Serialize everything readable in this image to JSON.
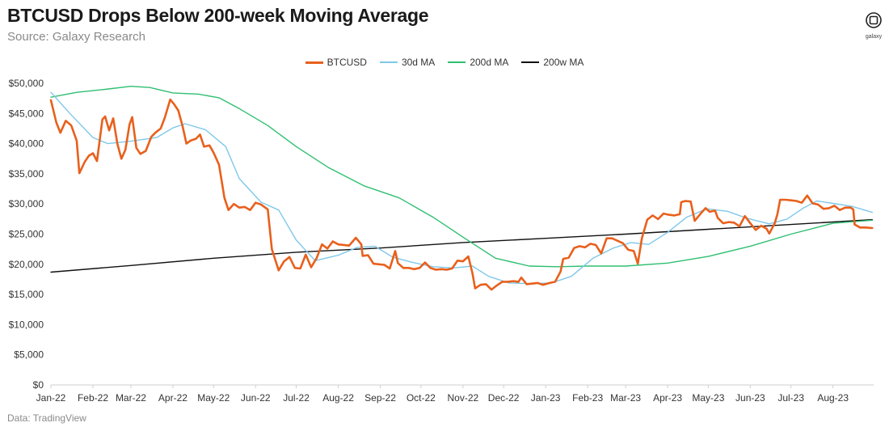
{
  "header": {
    "title": "BTCUSD Drops Below 200-week Moving Average",
    "subtitle": "Source: Galaxy Research"
  },
  "logo": {
    "text": "galaxy",
    "icon": "galaxy-logo-icon"
  },
  "footer": {
    "text": "Data: TradingView"
  },
  "colors": {
    "btc": "#e8601c",
    "ma30": "#7ec8ea",
    "ma200": "#2fbf71",
    "ma200w": "#111111",
    "axis": "#cfcfcf"
  },
  "chart_data": {
    "type": "line",
    "title": "BTCUSD Drops Below 200-week Moving Average",
    "subtitle": "Source: Galaxy Research",
    "xlabel": "",
    "ylabel": "",
    "ylim": [
      0,
      50000
    ],
    "y_ticks": [
      "$0",
      "$5,000",
      "$10,000",
      "$15,000",
      "$20,000",
      "$25,000",
      "$30,000",
      "$35,000",
      "$40,000",
      "$45,000",
      "$50,000"
    ],
    "x_ticks": [
      "Jan-22",
      "Feb-22",
      "Mar-22",
      "Apr-22",
      "May-22",
      "Jun-22",
      "Jul-22",
      "Aug-22",
      "Sep-22",
      "Oct-22",
      "Nov-22",
      "Dec-22",
      "Jan-23",
      "Feb-23",
      "Mar-23",
      "Apr-23",
      "May-23",
      "Jun-23",
      "Jul-23",
      "Aug-23"
    ],
    "x_range": [
      "2022-01-01",
      "2023-08-31"
    ],
    "grid": false,
    "legend_position": "top-center",
    "series": [
      {
        "name": "BTCUSD",
        "key": "btc",
        "points": [
          [
            "2022-01-01",
            47200
          ],
          [
            "2022-01-05",
            43500
          ],
          [
            "2022-01-08",
            41800
          ],
          [
            "2022-01-12",
            43800
          ],
          [
            "2022-01-16",
            43000
          ],
          [
            "2022-01-20",
            40500
          ],
          [
            "2022-01-22",
            35100
          ],
          [
            "2022-01-26",
            37000
          ],
          [
            "2022-01-29",
            38000
          ],
          [
            "2022-02-01",
            38400
          ],
          [
            "2022-02-04",
            37100
          ],
          [
            "2022-02-08",
            44000
          ],
          [
            "2022-02-10",
            44500
          ],
          [
            "2022-02-13",
            42200
          ],
          [
            "2022-02-16",
            44200
          ],
          [
            "2022-02-19",
            40000
          ],
          [
            "2022-02-22",
            37500
          ],
          [
            "2022-02-25",
            39000
          ],
          [
            "2022-02-28",
            43200
          ],
          [
            "2022-03-02",
            44400
          ],
          [
            "2022-03-05",
            39300
          ],
          [
            "2022-03-08",
            38300
          ],
          [
            "2022-03-12",
            38800
          ],
          [
            "2022-03-16",
            41100
          ],
          [
            "2022-03-19",
            41800
          ],
          [
            "2022-03-23",
            42500
          ],
          [
            "2022-03-26",
            44300
          ],
          [
            "2022-03-30",
            47300
          ],
          [
            "2022-04-02",
            46500
          ],
          [
            "2022-04-05",
            45500
          ],
          [
            "2022-04-08",
            43000
          ],
          [
            "2022-04-11",
            40000
          ],
          [
            "2022-04-14",
            40500
          ],
          [
            "2022-04-18",
            40800
          ],
          [
            "2022-04-21",
            41500
          ],
          [
            "2022-04-24",
            39500
          ],
          [
            "2022-04-28",
            39700
          ],
          [
            "2022-05-01",
            38500
          ],
          [
            "2022-05-05",
            36500
          ],
          [
            "2022-05-09",
            31000
          ],
          [
            "2022-05-12",
            29000
          ],
          [
            "2022-05-16",
            30000
          ],
          [
            "2022-05-20",
            29400
          ],
          [
            "2022-05-24",
            29500
          ],
          [
            "2022-05-28",
            29000
          ],
          [
            "2022-06-01",
            30200
          ],
          [
            "2022-06-05",
            29900
          ],
          [
            "2022-06-10",
            29100
          ],
          [
            "2022-06-13",
            22500
          ],
          [
            "2022-06-18",
            19000
          ],
          [
            "2022-06-22",
            20500
          ],
          [
            "2022-06-26",
            21200
          ],
          [
            "2022-06-30",
            19400
          ],
          [
            "2022-07-04",
            19300
          ],
          [
            "2022-07-08",
            21600
          ],
          [
            "2022-07-12",
            19500
          ],
          [
            "2022-07-16",
            21000
          ],
          [
            "2022-07-20",
            23300
          ],
          [
            "2022-07-24",
            22600
          ],
          [
            "2022-07-28",
            23800
          ],
          [
            "2022-08-01",
            23300
          ],
          [
            "2022-08-05",
            23200
          ],
          [
            "2022-08-09",
            23100
          ],
          [
            "2022-08-14",
            24400
          ],
          [
            "2022-08-18",
            23300
          ],
          [
            "2022-08-19",
            21400
          ],
          [
            "2022-08-23",
            21500
          ],
          [
            "2022-08-27",
            20100
          ],
          [
            "2022-08-31",
            20000
          ],
          [
            "2022-09-04",
            19900
          ],
          [
            "2022-09-08",
            19300
          ],
          [
            "2022-09-12",
            22200
          ],
          [
            "2022-09-14",
            20200
          ],
          [
            "2022-09-18",
            19400
          ],
          [
            "2022-09-22",
            19400
          ],
          [
            "2022-09-26",
            19200
          ],
          [
            "2022-09-30",
            19400
          ],
          [
            "2022-10-04",
            20300
          ],
          [
            "2022-10-08",
            19400
          ],
          [
            "2022-10-12",
            19100
          ],
          [
            "2022-10-16",
            19200
          ],
          [
            "2022-10-20",
            19100
          ],
          [
            "2022-10-24",
            19300
          ],
          [
            "2022-10-28",
            20600
          ],
          [
            "2022-11-01",
            20500
          ],
          [
            "2022-11-05",
            21300
          ],
          [
            "2022-11-08",
            18500
          ],
          [
            "2022-11-10",
            16000
          ],
          [
            "2022-11-14",
            16600
          ],
          [
            "2022-11-18",
            16700
          ],
          [
            "2022-11-22",
            15800
          ],
          [
            "2022-11-26",
            16500
          ],
          [
            "2022-11-30",
            17100
          ],
          [
            "2022-12-04",
            17100
          ],
          [
            "2022-12-08",
            17200
          ],
          [
            "2022-12-12",
            17100
          ],
          [
            "2022-12-14",
            17800
          ],
          [
            "2022-12-18",
            16700
          ],
          [
            "2022-12-22",
            16800
          ],
          [
            "2022-12-26",
            16900
          ],
          [
            "2022-12-30",
            16600
          ],
          [
            "2023-01-04",
            16900
          ],
          [
            "2023-01-08",
            17100
          ],
          [
            "2023-01-12",
            18800
          ],
          [
            "2023-01-14",
            20900
          ],
          [
            "2023-01-18",
            21100
          ],
          [
            "2023-01-22",
            22700
          ],
          [
            "2023-01-26",
            23000
          ],
          [
            "2023-01-30",
            22800
          ],
          [
            "2023-02-03",
            23400
          ],
          [
            "2023-02-07",
            23200
          ],
          [
            "2023-02-11",
            21800
          ],
          [
            "2023-02-15",
            24300
          ],
          [
            "2023-02-19",
            24300
          ],
          [
            "2023-02-23",
            23900
          ],
          [
            "2023-02-27",
            23500
          ],
          [
            "2023-03-03",
            22400
          ],
          [
            "2023-03-07",
            22200
          ],
          [
            "2023-03-10",
            20100
          ],
          [
            "2023-03-13",
            24300
          ],
          [
            "2023-03-17",
            27400
          ],
          [
            "2023-03-21",
            28100
          ],
          [
            "2023-03-25",
            27500
          ],
          [
            "2023-03-29",
            28400
          ],
          [
            "2023-04-02",
            28200
          ],
          [
            "2023-04-06",
            28100
          ],
          [
            "2023-04-10",
            28300
          ],
          [
            "2023-04-11",
            30300
          ],
          [
            "2023-04-14",
            30500
          ],
          [
            "2023-04-18",
            30400
          ],
          [
            "2023-04-21",
            27200
          ],
          [
            "2023-04-25",
            28300
          ],
          [
            "2023-04-29",
            29300
          ],
          [
            "2023-05-02",
            28700
          ],
          [
            "2023-05-06",
            28900
          ],
          [
            "2023-05-08",
            27700
          ],
          [
            "2023-05-12",
            26800
          ],
          [
            "2023-05-16",
            27000
          ],
          [
            "2023-05-20",
            26900
          ],
          [
            "2023-05-24",
            26300
          ],
          [
            "2023-05-28",
            28000
          ],
          [
            "2023-06-01",
            26800
          ],
          [
            "2023-06-05",
            25700
          ],
          [
            "2023-06-09",
            26400
          ],
          [
            "2023-06-13",
            25900
          ],
          [
            "2023-06-15",
            25100
          ],
          [
            "2023-06-19",
            26800
          ],
          [
            "2023-06-21",
            28300
          ],
          [
            "2023-06-23",
            30700
          ],
          [
            "2023-06-27",
            30700
          ],
          [
            "2023-07-01",
            30600
          ],
          [
            "2023-07-05",
            30500
          ],
          [
            "2023-07-09",
            30200
          ],
          [
            "2023-07-13",
            31400
          ],
          [
            "2023-07-17",
            30100
          ],
          [
            "2023-07-21",
            29900
          ],
          [
            "2023-07-25",
            29200
          ],
          [
            "2023-07-29",
            29300
          ],
          [
            "2023-08-02",
            29700
          ],
          [
            "2023-08-06",
            29000
          ],
          [
            "2023-08-10",
            29400
          ],
          [
            "2023-08-14",
            29400
          ],
          [
            "2023-08-16",
            29100
          ],
          [
            "2023-08-17",
            26600
          ],
          [
            "2023-08-21",
            26100
          ],
          [
            "2023-08-25",
            26100
          ],
          [
            "2023-08-30",
            26000
          ]
        ]
      },
      {
        "name": "30d MA",
        "key": "ma30",
        "points": [
          [
            "2022-01-01",
            48500
          ],
          [
            "2022-01-15",
            45000
          ],
          [
            "2022-02-01",
            41000
          ],
          [
            "2022-02-12",
            40000
          ],
          [
            "2022-03-01",
            40400
          ],
          [
            "2022-03-20",
            41000
          ],
          [
            "2022-04-01",
            42600
          ],
          [
            "2022-04-10",
            43300
          ],
          [
            "2022-04-25",
            42300
          ],
          [
            "2022-05-10",
            39500
          ],
          [
            "2022-05-20",
            34200
          ],
          [
            "2022-06-05",
            30300
          ],
          [
            "2022-06-18",
            29000
          ],
          [
            "2022-07-01",
            24000
          ],
          [
            "2022-07-15",
            20600
          ],
          [
            "2022-08-01",
            21500
          ],
          [
            "2022-08-15",
            22800
          ],
          [
            "2022-08-28",
            23000
          ],
          [
            "2022-09-10",
            21200
          ],
          [
            "2022-09-25",
            20300
          ],
          [
            "2022-10-10",
            19600
          ],
          [
            "2022-10-25",
            19400
          ],
          [
            "2022-11-08",
            19700
          ],
          [
            "2022-11-20",
            18000
          ],
          [
            "2022-12-05",
            16900
          ],
          [
            "2022-12-20",
            16800
          ],
          [
            "2023-01-05",
            16900
          ],
          [
            "2023-01-20",
            18000
          ],
          [
            "2023-02-05",
            21000
          ],
          [
            "2023-02-20",
            22700
          ],
          [
            "2023-03-05",
            23600
          ],
          [
            "2023-03-18",
            23300
          ],
          [
            "2023-04-01",
            25300
          ],
          [
            "2023-04-15",
            27800
          ],
          [
            "2023-04-30",
            29200
          ],
          [
            "2023-05-15",
            28800
          ],
          [
            "2023-05-30",
            27600
          ],
          [
            "2023-06-15",
            26700
          ],
          [
            "2023-06-28",
            27500
          ],
          [
            "2023-07-10",
            29300
          ],
          [
            "2023-07-20",
            30500
          ],
          [
            "2023-08-01",
            30100
          ],
          [
            "2023-08-15",
            29600
          ],
          [
            "2023-08-30",
            28600
          ]
        ]
      },
      {
        "name": "200d MA",
        "key": "ma200",
        "points": [
          [
            "2022-01-01",
            47700
          ],
          [
            "2022-01-20",
            48500
          ],
          [
            "2022-02-10",
            49000
          ],
          [
            "2022-03-01",
            49500
          ],
          [
            "2022-03-15",
            49300
          ],
          [
            "2022-04-01",
            48400
          ],
          [
            "2022-04-20",
            48200
          ],
          [
            "2022-05-05",
            47600
          ],
          [
            "2022-05-20",
            45800
          ],
          [
            "2022-06-10",
            43000
          ],
          [
            "2022-07-01",
            39500
          ],
          [
            "2022-07-25",
            36000
          ],
          [
            "2022-08-20",
            33000
          ],
          [
            "2022-09-15",
            31000
          ],
          [
            "2022-10-10",
            27800
          ],
          [
            "2022-11-01",
            24500
          ],
          [
            "2022-11-25",
            21000
          ],
          [
            "2022-12-20",
            19700
          ],
          [
            "2023-01-10",
            19600
          ],
          [
            "2023-02-01",
            19700
          ],
          [
            "2023-03-01",
            19700
          ],
          [
            "2023-04-01",
            20200
          ],
          [
            "2023-05-01",
            21300
          ],
          [
            "2023-06-01",
            23000
          ],
          [
            "2023-07-01",
            25000
          ],
          [
            "2023-08-01",
            26800
          ],
          [
            "2023-08-30",
            27300
          ]
        ]
      },
      {
        "name": "200w MA",
        "key": "ma200w",
        "points": [
          [
            "2022-01-01",
            18700
          ],
          [
            "2022-03-01",
            19800
          ],
          [
            "2022-05-01",
            21000
          ],
          [
            "2022-07-01",
            22000
          ],
          [
            "2022-09-01",
            22700
          ],
          [
            "2022-11-01",
            23600
          ],
          [
            "2023-01-01",
            24300
          ],
          [
            "2023-03-01",
            25000
          ],
          [
            "2023-05-01",
            25800
          ],
          [
            "2023-07-01",
            26600
          ],
          [
            "2023-08-30",
            27400
          ]
        ]
      }
    ]
  }
}
